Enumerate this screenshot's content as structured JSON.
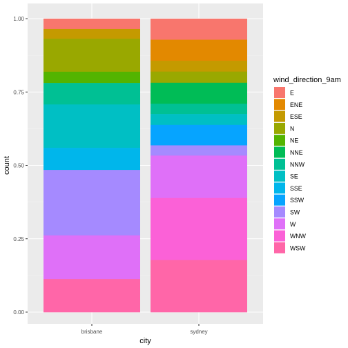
{
  "chart_data": {
    "type": "bar",
    "stacked": "proportion",
    "xlabel": "city",
    "ylabel": "count",
    "ylim": [
      0,
      1
    ],
    "yticks": [
      "0.00",
      "0.25",
      "0.50",
      "0.75",
      "1.00"
    ],
    "ytick_values": [
      0,
      0.25,
      0.5,
      0.75,
      1.0
    ],
    "categories": [
      "brisbane",
      "sydney"
    ],
    "legend_title": "wind_direction_9am",
    "legend_position": "right",
    "grid": true,
    "series": [
      {
        "name": "E",
        "color": "#F8766D",
        "values": [
          0.035,
          0.072
        ]
      },
      {
        "name": "ENE",
        "color": "#E38900",
        "values": [
          0.0,
          0.072
        ]
      },
      {
        "name": "ESE",
        "color": "#C49A00",
        "values": [
          0.033,
          0.037
        ]
      },
      {
        "name": "N",
        "color": "#99A800",
        "values": [
          0.112,
          0.038
        ]
      },
      {
        "name": "NE",
        "color": "#53B400",
        "values": [
          0.038,
          0.0
        ]
      },
      {
        "name": "NNE",
        "color": "#00BC56",
        "values": [
          0.0,
          0.072
        ]
      },
      {
        "name": "NNW",
        "color": "#00C094",
        "values": [
          0.073,
          0.035
        ]
      },
      {
        "name": "SE",
        "color": "#00BFC4",
        "values": [
          0.147,
          0.037
        ]
      },
      {
        "name": "SSE",
        "color": "#00B6EB",
        "values": [
          0.075,
          0.0
        ]
      },
      {
        "name": "SSW",
        "color": "#06A4FF",
        "values": [
          0.0,
          0.07
        ]
      },
      {
        "name": "SW",
        "color": "#A58AFF",
        "values": [
          0.222,
          0.035
        ]
      },
      {
        "name": "W",
        "color": "#DF70F8",
        "values": [
          0.148,
          0.145
        ]
      },
      {
        "name": "WNW",
        "color": "#FB61D7",
        "values": [
          0.0,
          0.212
        ]
      },
      {
        "name": "WSW",
        "color": "#FF66A8",
        "values": [
          0.112,
          0.178
        ]
      }
    ]
  }
}
